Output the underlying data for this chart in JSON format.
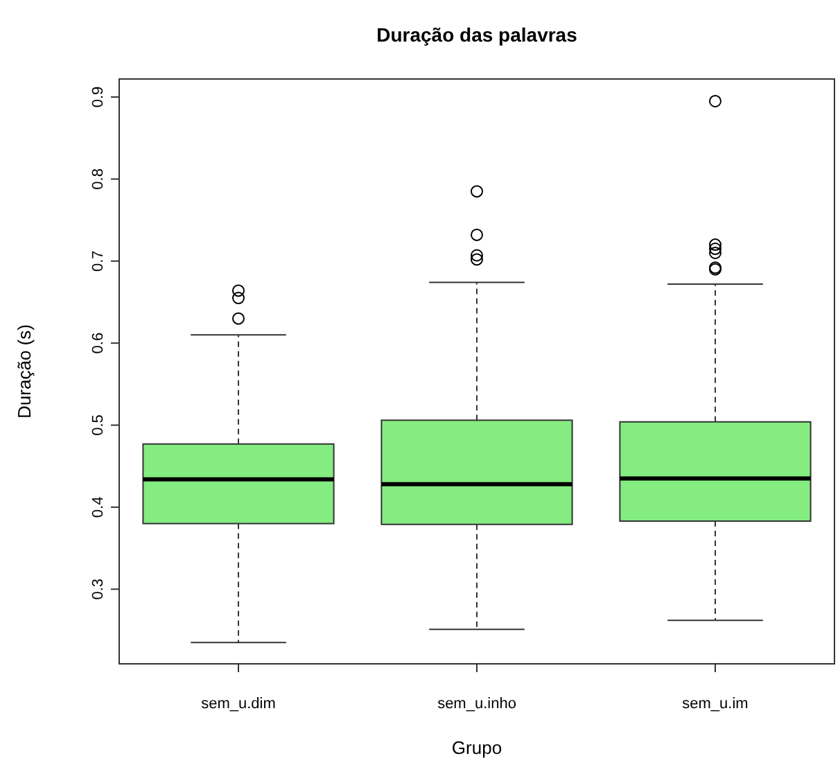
{
  "chart_data": {
    "type": "box",
    "title": "Duração das palavras",
    "xlabel": "Grupo",
    "ylabel": "Duração (s)",
    "categories": [
      "sem_u.dim",
      "sem_u.inho",
      "sem_u.im"
    ],
    "color": "#84ec80",
    "boxes": [
      {
        "low": 0.235,
        "q1": 0.38,
        "median": 0.434,
        "q3": 0.477,
        "high": 0.61,
        "outliers": [
          0.664,
          0.655,
          0.63
        ]
      },
      {
        "low": 0.251,
        "q1": 0.379,
        "median": 0.428,
        "q3": 0.506,
        "high": 0.674,
        "outliers": [
          0.785,
          0.732,
          0.707,
          0.702
        ]
      },
      {
        "low": 0.262,
        "q1": 0.383,
        "median": 0.435,
        "q3": 0.504,
        "high": 0.672,
        "outliers": [
          0.895,
          0.72,
          0.715,
          0.71,
          0.692,
          0.69
        ]
      }
    ],
    "ylim": [
      0.209,
      0.922
    ],
    "yticks": [
      0.3,
      0.4,
      0.5,
      0.6,
      0.7,
      0.8,
      0.9
    ],
    "grid": false
  }
}
